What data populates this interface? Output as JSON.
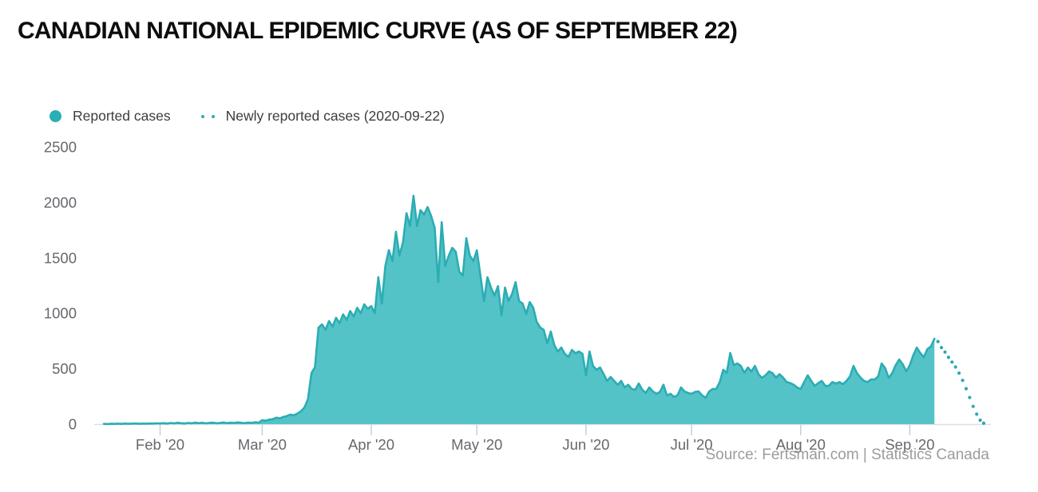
{
  "title": "CANADIAN NATIONAL EPIDEMIC CURVE (AS OF SEPTEMBER 22)",
  "source": "Source: Fertsman.com | Statistics Canada",
  "legend": {
    "reported": "Reported cases",
    "newly_reported": "Newly reported cases (2020-09-22)"
  },
  "colors": {
    "area_fill": "#54c3c8",
    "area_stroke": "#2badb3",
    "dotted_point": "#28a9b0",
    "legend_dot": "#29afb4",
    "axis_line": "#d9dfea",
    "tick_mark": "#c3cfe2",
    "axis_text": "#65686d",
    "source_text": "#9c9c9c",
    "title_text": "#0d0d0d"
  },
  "chart_data": {
    "type": "area",
    "title": "Canadian national epidemic curve (as of September 22)",
    "xlabel": "",
    "ylabel": "",
    "ylim": [
      0,
      2500
    ],
    "y_ticks": [
      0,
      500,
      1000,
      1500,
      2000,
      2500
    ],
    "x_ticks": [
      "Feb '20",
      "Mar '20",
      "Apr '20",
      "May '20",
      "Jun '20",
      "Jul '20",
      "Aug '20",
      "Sep '20"
    ],
    "x_tick_day_index": [
      16,
      45,
      76,
      106,
      137,
      167,
      198,
      229
    ],
    "grid": false,
    "legend_position": "top-left",
    "series": [
      {
        "name": "Reported cases",
        "style": "area",
        "start_date": "2020-01-16",
        "end_date": "2020-09-08",
        "values": [
          2,
          1,
          3,
          2,
          4,
          2,
          5,
          3,
          4,
          6,
          3,
          5,
          4,
          6,
          5,
          7,
          6,
          9,
          5,
          10,
          7,
          12,
          8,
          6,
          11,
          8,
          14,
          9,
          12,
          7,
          10,
          13,
          8,
          11,
          15,
          9,
          13,
          10,
          16,
          12,
          9,
          14,
          11,
          17,
          13,
          36,
          30,
          40,
          45,
          58,
          52,
          65,
          72,
          86,
          80,
          95,
          115,
          150,
          225,
          460,
          515,
          870,
          900,
          850,
          930,
          880,
          960,
          910,
          990,
          940,
          1020,
          970,
          1050,
          1000,
          1080,
          1040,
          1065,
          1000,
          1325,
          1087,
          1425,
          1569,
          1470,
          1735,
          1520,
          1640,
          1903,
          1786,
          2060,
          1786,
          1930,
          1890,
          1958,
          1879,
          1771,
          1281,
          1821,
          1425,
          1520,
          1590,
          1555,
          1375,
          1339,
          1677,
          1520,
          1470,
          1568,
          1339,
          1110,
          1325,
          1231,
          1159,
          1245,
          980,
          1231,
          1110,
          1174,
          1281,
          1110,
          1087,
          994,
          1101,
          1051,
          922,
          871,
          850,
          727,
          835,
          713,
          655,
          691,
          634,
          605,
          669,
          640,
          655,
          634,
          439,
          655,
          525,
          490,
          511,
          453,
          390,
          425,
          390,
          355,
          390,
          331,
          355,
          317,
          310,
          367,
          310,
          281,
          331,
          295,
          274,
          290,
          355,
          259,
          274,
          245,
          259,
          331,
          295,
          281,
          274,
          290,
          295,
          259,
          238,
          295,
          317,
          317,
          380,
          490,
          463,
          641,
          533,
          547,
          525,
          463,
          511,
          475,
          525,
          450,
          417,
          440,
          475,
          460,
          420,
          450,
          420,
          380,
          370,
          355,
          330,
          317,
          380,
          440,
          390,
          345,
          370,
          390,
          345,
          345,
          380,
          365,
          380,
          360,
          390,
          430,
          525,
          460,
          420,
          390,
          380,
          403,
          403,
          430,
          547,
          505,
          417,
          460,
          532,
          583,
          540,
          475,
          532,
          620,
          690,
          640,
          605,
          677,
          700,
          770
        ]
      },
      {
        "name": "Newly reported cases (2020-09-22)",
        "style": "dotted",
        "start_date": "2020-09-08",
        "end_date": "2020-09-22",
        "values": [
          770,
          745,
          690,
          650,
          602,
          560,
          515,
          460,
          395,
          320,
          240,
          160,
          90,
          35,
          8
        ]
      }
    ]
  }
}
